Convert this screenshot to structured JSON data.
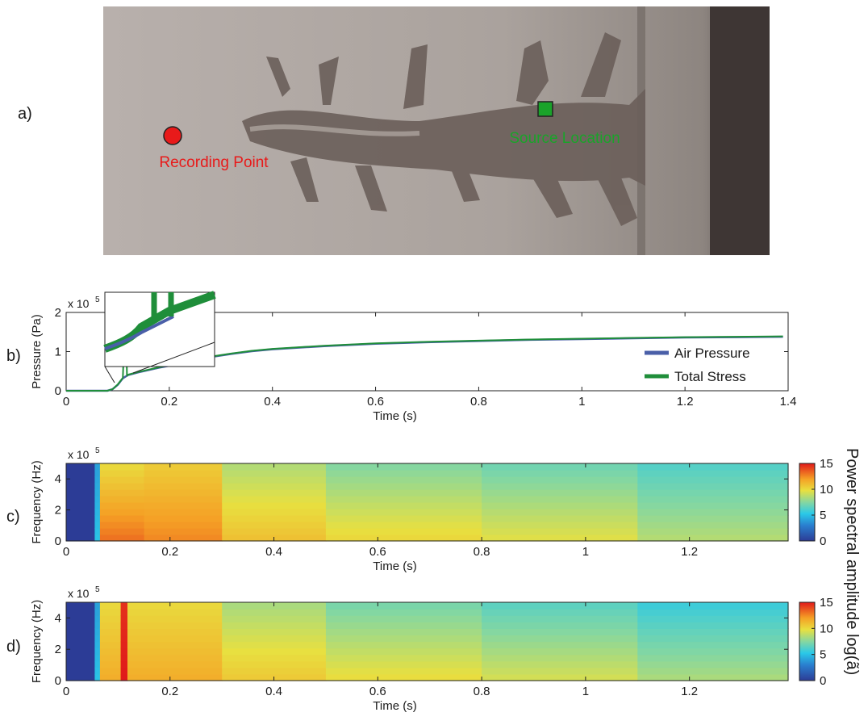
{
  "colors": {
    "marker_recording": "#e81a1a",
    "marker_source": "#1aa32a",
    "air_pressure": "#4a5fa8",
    "total_stress": "#1f8e3a"
  },
  "panel_a": {
    "label": "a)",
    "recording_label": "Recording Point",
    "source_label": "Source Location"
  },
  "panel_b": {
    "label": "b)"
  },
  "panel_c": {
    "label": "c)"
  },
  "panel_d": {
    "label": "d)"
  },
  "colorbar": {
    "title": "Power spectral amplitude  log(ã)",
    "ticks": [
      "15",
      "10",
      "5",
      "0"
    ]
  },
  "chart_data": [
    {
      "type": "line",
      "xlabel": "Time (s)",
      "ylabel": "Pressure (Pa)",
      "y_multiplier": "x 10",
      "y_exponent": "5",
      "xlim": [
        0,
        1.4
      ],
      "ylim": [
        0,
        2
      ],
      "xticks": [
        "0",
        "0.2",
        "0.4",
        "0.6",
        "0.8",
        "1",
        "1.2",
        "1.4"
      ],
      "yticks": [
        "0",
        "1",
        "2"
      ],
      "legend_position": "bottom-right",
      "series": [
        {
          "name": "Air Pressure",
          "x": [
            0,
            0.08,
            0.09,
            0.1,
            0.11,
            0.12,
            0.14,
            0.16,
            0.18,
            0.2,
            0.24,
            0.28,
            0.32,
            0.36,
            0.4,
            0.5,
            0.6,
            0.7,
            0.8,
            0.9,
            1.0,
            1.1,
            1.2,
            1.3,
            1.39
          ],
          "y": [
            0,
            0.0,
            0.04,
            0.15,
            0.32,
            0.4,
            0.47,
            0.53,
            0.59,
            0.64,
            0.75,
            0.86,
            0.94,
            1.01,
            1.06,
            1.14,
            1.2,
            1.24,
            1.27,
            1.3,
            1.32,
            1.34,
            1.36,
            1.37,
            1.38
          ]
        },
        {
          "name": "Total Stress",
          "x": [
            0,
            0.08,
            0.09,
            0.1,
            0.11,
            0.112,
            0.113,
            0.117,
            0.118,
            0.12,
            0.14,
            0.16,
            0.18,
            0.2,
            0.24,
            0.28,
            0.32,
            0.36,
            0.4,
            0.5,
            0.6,
            0.7,
            0.8,
            0.9,
            1.0,
            1.1,
            1.2,
            1.3,
            1.39
          ],
          "y": [
            0,
            0.0,
            0.04,
            0.16,
            0.33,
            1.1,
            1.1,
            1.1,
            0.38,
            0.41,
            0.48,
            0.54,
            0.6,
            0.65,
            0.76,
            0.87,
            0.95,
            1.02,
            1.07,
            1.15,
            1.21,
            1.25,
            1.28,
            1.31,
            1.33,
            1.35,
            1.37,
            1.38,
            1.39
          ]
        }
      ]
    },
    {
      "type": "heatmap",
      "xlabel": "Time (s)",
      "ylabel": "Frequency (Hz)",
      "y_multiplier": "x 10",
      "y_exponent": "5",
      "xlim": [
        0,
        1.39
      ],
      "ylim": [
        0,
        5
      ],
      "xticks": [
        "0",
        "0.2",
        "0.4",
        "0.6",
        "0.8",
        "1",
        "1.2"
      ],
      "yticks": [
        "0",
        "2",
        "4"
      ],
      "clim": [
        0,
        15
      ],
      "time_bands": [
        {
          "t0": 0.0,
          "t1": 0.055,
          "top": 0,
          "bottom": 0
        },
        {
          "t0": 0.055,
          "t1": 0.065,
          "top": 4,
          "bottom": 5
        },
        {
          "t0": 0.065,
          "t1": 0.15,
          "top": 10,
          "bottom": 13
        },
        {
          "t0": 0.15,
          "t1": 0.3,
          "top": 10.5,
          "bottom": 12.5
        },
        {
          "t0": 0.3,
          "t1": 0.5,
          "top": 8.5,
          "bottom": 10.8
        },
        {
          "t0": 0.5,
          "t1": 0.8,
          "top": 7.5,
          "bottom": 10
        },
        {
          "t0": 0.8,
          "t1": 1.1,
          "top": 7,
          "bottom": 9.5
        },
        {
          "t0": 1.1,
          "t1": 1.39,
          "top": 6.3,
          "bottom": 8.5
        }
      ]
    },
    {
      "type": "heatmap",
      "xlabel": "Time (s)",
      "ylabel": "Frequency (Hz)",
      "y_multiplier": "x 10",
      "y_exponent": "5",
      "xlim": [
        0,
        1.39
      ],
      "ylim": [
        0,
        5
      ],
      "xticks": [
        "0",
        "0.2",
        "0.4",
        "0.6",
        "0.8",
        "1",
        "1.2"
      ],
      "yticks": [
        "0",
        "2",
        "4"
      ],
      "clim": [
        0,
        15
      ],
      "time_bands": [
        {
          "t0": 0.0,
          "t1": 0.055,
          "top": 0,
          "bottom": 0
        },
        {
          "t0": 0.055,
          "t1": 0.065,
          "top": 4,
          "bottom": 5
        },
        {
          "t0": 0.065,
          "t1": 0.105,
          "top": 10,
          "bottom": 11.5
        },
        {
          "t0": 0.105,
          "t1": 0.118,
          "top": 14.5,
          "bottom": 15
        },
        {
          "t0": 0.118,
          "t1": 0.3,
          "top": 10,
          "bottom": 11.5
        },
        {
          "t0": 0.3,
          "t1": 0.5,
          "top": 8.3,
          "bottom": 10.5
        },
        {
          "t0": 0.5,
          "t1": 0.8,
          "top": 7.2,
          "bottom": 9.8
        },
        {
          "t0": 0.8,
          "t1": 1.1,
          "top": 6.5,
          "bottom": 9.2
        },
        {
          "t0": 1.1,
          "t1": 1.39,
          "top": 5.7,
          "bottom": 8.3
        }
      ]
    }
  ]
}
